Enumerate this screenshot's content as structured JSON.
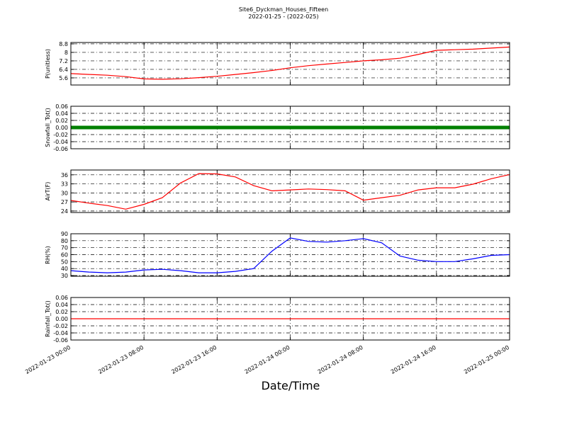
{
  "chart_data": [
    {
      "type": "line",
      "title": "Site6_Dyckman_Houses_Fifteen",
      "subtitle": "2022-01-25 - (2022-025)",
      "ylabel": "P(unitless)",
      "x": [
        "2022-01-23 00:00",
        "2022-01-23 02:00",
        "2022-01-23 04:00",
        "2022-01-23 06:00",
        "2022-01-23 08:00",
        "2022-01-23 10:00",
        "2022-01-23 12:00",
        "2022-01-23 14:00",
        "2022-01-23 16:00",
        "2022-01-23 18:00",
        "2022-01-23 20:00",
        "2022-01-23 22:00",
        "2022-01-24 00:00",
        "2022-01-24 02:00",
        "2022-01-24 04:00",
        "2022-01-24 06:00",
        "2022-01-24 08:00",
        "2022-01-24 10:00",
        "2022-01-24 12:00",
        "2022-01-24 14:00",
        "2022-01-24 16:00",
        "2022-01-24 18:00",
        "2022-01-24 20:00",
        "2022-01-24 22:00",
        "2022-01-25 00:00"
      ],
      "series": [
        {
          "name": "P",
          "color": "#ff0000",
          "values": [
            6.0,
            5.92,
            5.85,
            5.72,
            5.5,
            5.47,
            5.52,
            5.62,
            5.75,
            5.92,
            6.1,
            6.3,
            6.55,
            6.75,
            6.9,
            7.05,
            7.2,
            7.3,
            7.45,
            7.8,
            8.2,
            8.25,
            8.3,
            8.4,
            8.5
          ]
        }
      ],
      "xlim": [
        "2022-01-23 00:00",
        "2022-01-25 00:00"
      ],
      "xticks": [
        "2022-01-23 00:00",
        "2022-01-23 08:00",
        "2022-01-23 16:00",
        "2022-01-24 00:00",
        "2022-01-24 08:00",
        "2022-01-24 16:00",
        "2022-01-25 00:00"
      ],
      "ylim": [
        4.93,
        8.93
      ],
      "yticks": [
        5.6,
        6.4,
        7.2,
        8.0,
        8.8
      ],
      "grid": true
    },
    {
      "type": "line",
      "ylabel": "Snowfall_Tot()",
      "x": [
        "2022-01-23 00:00",
        "2022-01-23 02:00",
        "2022-01-23 04:00",
        "2022-01-23 06:00",
        "2022-01-23 08:00",
        "2022-01-23 10:00",
        "2022-01-23 12:00",
        "2022-01-23 14:00",
        "2022-01-23 16:00",
        "2022-01-23 18:00",
        "2022-01-23 20:00",
        "2022-01-23 22:00",
        "2022-01-24 00:00",
        "2022-01-24 02:00",
        "2022-01-24 04:00",
        "2022-01-24 06:00",
        "2022-01-24 08:00",
        "2022-01-24 10:00",
        "2022-01-24 12:00",
        "2022-01-24 14:00",
        "2022-01-24 16:00",
        "2022-01-24 18:00",
        "2022-01-24 20:00",
        "2022-01-24 22:00",
        "2022-01-25 00:00"
      ],
      "series": [
        {
          "name": "Snowfall_Tot",
          "color": "#008000",
          "values": [
            0,
            0,
            0,
            0,
            0,
            0,
            0,
            0,
            0,
            0,
            0,
            0,
            0,
            0,
            0,
            0,
            0,
            0,
            0,
            0,
            0,
            0,
            0,
            0,
            0
          ]
        }
      ],
      "xlim": [
        "2022-01-23 00:00",
        "2022-01-25 00:00"
      ],
      "xticks": [
        "2022-01-23 00:00",
        "2022-01-23 08:00",
        "2022-01-23 16:00",
        "2022-01-24 00:00",
        "2022-01-24 08:00",
        "2022-01-24 16:00",
        "2022-01-25 00:00"
      ],
      "ylim": [
        -0.06,
        0.06
      ],
      "yticks": [
        {
          "value": -0.06,
          "label": "-0.06"
        },
        {
          "value": -0.04,
          "label": "-0.04"
        },
        {
          "value": -0.02,
          "label": "-0.02"
        },
        {
          "value": 0,
          "label": "0.00"
        },
        {
          "value": 0.02,
          "label": "0.02"
        },
        {
          "value": 0.04,
          "label": "0.04"
        },
        {
          "value": 0.06,
          "label": "0.06"
        }
      ],
      "grid": true
    },
    {
      "type": "line",
      "ylabel": "AirT(F)",
      "x": [
        "2022-01-23 00:00",
        "2022-01-23 02:00",
        "2022-01-23 04:00",
        "2022-01-23 06:00",
        "2022-01-23 08:00",
        "2022-01-23 10:00",
        "2022-01-23 12:00",
        "2022-01-23 14:00",
        "2022-01-23 16:00",
        "2022-01-23 18:00",
        "2022-01-23 20:00",
        "2022-01-23 22:00",
        "2022-01-24 00:00",
        "2022-01-24 02:00",
        "2022-01-24 04:00",
        "2022-01-24 06:00",
        "2022-01-24 08:00",
        "2022-01-24 10:00",
        "2022-01-24 12:00",
        "2022-01-24 14:00",
        "2022-01-24 16:00",
        "2022-01-24 18:00",
        "2022-01-24 20:00",
        "2022-01-24 22:00",
        "2022-01-25 00:00"
      ],
      "series": [
        {
          "name": "AirT",
          "color": "#ff0000",
          "values": [
            27.5,
            26.6,
            25.8,
            24.6,
            26.2,
            28.4,
            33.3,
            36.4,
            36.3,
            35.3,
            32.4,
            30.7,
            31.0,
            31.3,
            31.1,
            30.7,
            27.6,
            28.4,
            29.2,
            31.0,
            31.7,
            31.7,
            32.9,
            34.7,
            36.1
          ]
        }
      ],
      "xlim": [
        "2022-01-23 00:00",
        "2022-01-25 00:00"
      ],
      "xticks": [
        "2022-01-23 00:00",
        "2022-01-23 08:00",
        "2022-01-23 16:00",
        "2022-01-24 00:00",
        "2022-01-24 08:00",
        "2022-01-24 16:00",
        "2022-01-25 00:00"
      ],
      "ylim": [
        23.5,
        37.6
      ],
      "yticks": [
        24,
        27,
        30,
        33,
        36
      ],
      "grid": true
    },
    {
      "type": "line",
      "ylabel": "RH(%)",
      "x": [
        "2022-01-23 00:00",
        "2022-01-23 02:00",
        "2022-01-23 04:00",
        "2022-01-23 06:00",
        "2022-01-23 08:00",
        "2022-01-23 10:00",
        "2022-01-23 12:00",
        "2022-01-23 14:00",
        "2022-01-23 16:00",
        "2022-01-23 18:00",
        "2022-01-23 20:00",
        "2022-01-23 22:00",
        "2022-01-24 00:00",
        "2022-01-24 02:00",
        "2022-01-24 04:00",
        "2022-01-24 06:00",
        "2022-01-24 08:00",
        "2022-01-24 10:00",
        "2022-01-24 12:00",
        "2022-01-24 14:00",
        "2022-01-24 16:00",
        "2022-01-24 18:00",
        "2022-01-24 20:00",
        "2022-01-24 22:00",
        "2022-01-25 00:00"
      ],
      "series": [
        {
          "name": "RH",
          "color": "#0000ff",
          "values": [
            37,
            35,
            34,
            35,
            38,
            39,
            37,
            34,
            34,
            36,
            40,
            65,
            84,
            79,
            78,
            80,
            83,
            77,
            58,
            52,
            50,
            50,
            54,
            59,
            60
          ]
        }
      ],
      "xlim": [
        "2022-01-23 00:00",
        "2022-01-25 00:00"
      ],
      "xticks": [
        "2022-01-23 00:00",
        "2022-01-23 08:00",
        "2022-01-23 16:00",
        "2022-01-24 00:00",
        "2022-01-24 08:00",
        "2022-01-24 16:00",
        "2022-01-25 00:00"
      ],
      "ylim": [
        29,
        90
      ],
      "yticks": [
        30,
        40,
        50,
        60,
        70,
        80,
        90
      ],
      "grid": true
    },
    {
      "type": "line",
      "ylabel": "Rainfall_Tot()",
      "xlabel": "Date/Time",
      "x": [
        "2022-01-23 00:00",
        "2022-01-23 02:00",
        "2022-01-23 04:00",
        "2022-01-23 06:00",
        "2022-01-23 08:00",
        "2022-01-23 10:00",
        "2022-01-23 12:00",
        "2022-01-23 14:00",
        "2022-01-23 16:00",
        "2022-01-23 18:00",
        "2022-01-23 20:00",
        "2022-01-23 22:00",
        "2022-01-24 00:00",
        "2022-01-24 02:00",
        "2022-01-24 04:00",
        "2022-01-24 06:00",
        "2022-01-24 08:00",
        "2022-01-24 10:00",
        "2022-01-24 12:00",
        "2022-01-24 14:00",
        "2022-01-24 16:00",
        "2022-01-24 18:00",
        "2022-01-24 20:00",
        "2022-01-24 22:00",
        "2022-01-25 00:00"
      ],
      "series": [
        {
          "name": "Rainfall_Tot",
          "color": "#ff0000",
          "values": [
            0,
            0,
            0,
            0,
            0,
            0,
            0,
            0,
            0,
            0,
            0,
            0,
            0,
            0,
            0,
            0,
            0,
            0,
            0,
            0,
            0,
            0,
            0,
            0,
            0
          ]
        }
      ],
      "xlim": [
        "2022-01-23 00:00",
        "2022-01-25 00:00"
      ],
      "xticks": [
        "2022-01-23 00:00",
        "2022-01-23 08:00",
        "2022-01-23 16:00",
        "2022-01-24 00:00",
        "2022-01-24 08:00",
        "2022-01-24 16:00",
        "2022-01-25 00:00"
      ],
      "ylim": [
        -0.06,
        0.06
      ],
      "yticks": [
        {
          "value": -0.06,
          "label": "-0.06"
        },
        {
          "value": -0.04,
          "label": "-0.04"
        },
        {
          "value": -0.02,
          "label": "-0.02"
        },
        {
          "value": 0,
          "label": "0.00"
        },
        {
          "value": 0.02,
          "label": "0.02"
        },
        {
          "value": 0.04,
          "label": "0.04"
        },
        {
          "value": 0.06,
          "label": "0.06"
        }
      ],
      "grid": true
    }
  ]
}
